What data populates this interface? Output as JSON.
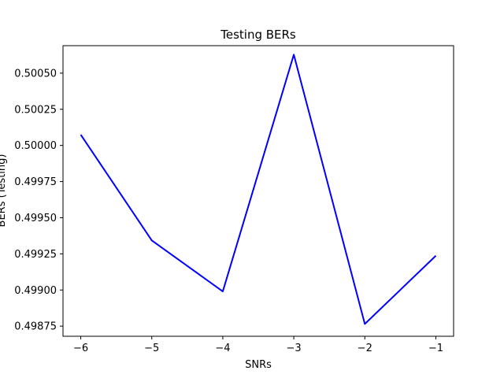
{
  "chart_data": {
    "type": "line",
    "title": "Testing BERs",
    "xlabel": "SNRs",
    "ylabel": "BERs (Testing)",
    "x": [
      -6,
      -5,
      -4,
      -3,
      -2,
      -1
    ],
    "series": [
      {
        "values": [
          0.500074,
          0.499343,
          0.49899,
          0.500628,
          0.498765,
          0.499237
        ],
        "color": "#0000ff"
      }
    ],
    "xlim": [
      -6.25,
      -0.75
    ],
    "ylim": [
      0.49868,
      0.50069
    ],
    "xticks": [
      -6,
      -5,
      -4,
      -3,
      -2,
      -1
    ],
    "xtick_labels": [
      "−6",
      "−5",
      "−4",
      "−3",
      "−2",
      "−1"
    ],
    "yticks": [
      0.49875,
      0.499,
      0.49925,
      0.4995,
      0.49975,
      0.5,
      0.50025,
      0.5005
    ],
    "ytick_labels": [
      "0.49875",
      "0.49900",
      "0.49925",
      "0.49950",
      "0.49975",
      "0.50000",
      "0.50025",
      "0.50050"
    ],
    "grid": false,
    "legend": "none"
  }
}
